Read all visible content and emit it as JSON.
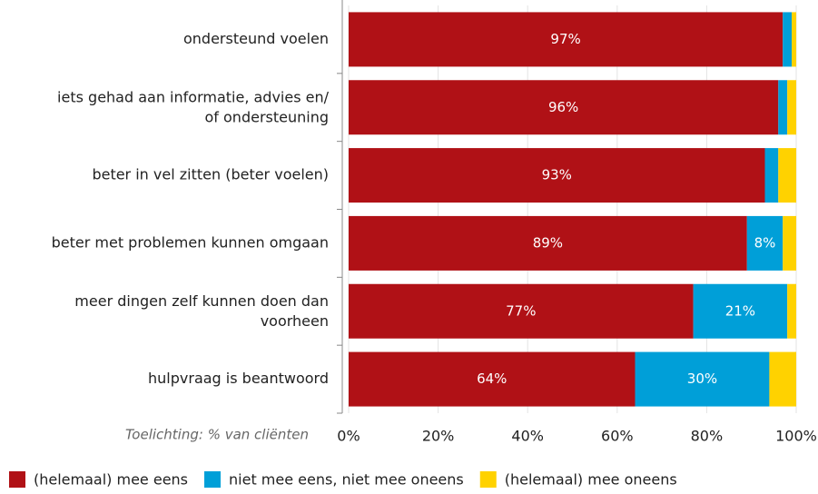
{
  "chart_data": {
    "type": "stacked-bar-horizontal",
    "categories": [
      "ondersteund voelen",
      "iets gehad aan informatie, advies en/\nof ondersteuning",
      "beter in vel zitten (beter voelen)",
      "beter met problemen kunnen omgaan",
      "meer dingen zelf kunnen doen dan\nvoorheen",
      "hulpvraag is beantwoord"
    ],
    "series": [
      {
        "name": "(helemaal) mee eens",
        "color": "#b01116",
        "values": [
          97,
          96,
          93,
          89,
          77,
          64
        ],
        "value_labels": [
          "97%",
          "96%",
          "93%",
          "89%",
          "77%",
          "64%"
        ]
      },
      {
        "name": "niet mee eens, niet mee oneens",
        "color": "#009fd8",
        "values": [
          2,
          2,
          3,
          8,
          21,
          30
        ],
        "value_labels": [
          null,
          null,
          null,
          "8%",
          "21%",
          "30%"
        ]
      },
      {
        "name": "(helemaal) mee oneens",
        "color": "#ffd200",
        "values": [
          1,
          2,
          4,
          3,
          2,
          6
        ],
        "value_labels": [
          null,
          null,
          null,
          null,
          null,
          null
        ]
      }
    ],
    "xlim": [
      0,
      100
    ],
    "xticks": [
      {
        "value": 0,
        "label": "0%"
      },
      {
        "value": 20,
        "label": "20%"
      },
      {
        "value": 40,
        "label": "40%"
      },
      {
        "value": 60,
        "label": "60%"
      },
      {
        "value": 80,
        "label": "80%"
      },
      {
        "value": 100,
        "label": "100%"
      }
    ],
    "grid": true,
    "note": "Toelichting: % van cliënten"
  }
}
